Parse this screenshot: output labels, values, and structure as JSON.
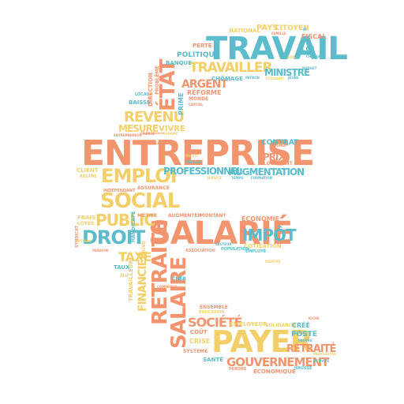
{
  "palette": {
    "salmon": "#f2956f",
    "teal": "#5bbccb",
    "yellow": "#f3cf6a",
    "background": "#ffffff"
  },
  "words": [
    {
      "text": "ENTREPRISE",
      "color": "salmon"
    },
    {
      "text": "TRAVAIL",
      "color": "teal"
    },
    {
      "text": "SALARIÉ",
      "color": "salmon"
    },
    {
      "text": "PAYER",
      "color": "yellow"
    },
    {
      "text": "SOCIAL",
      "color": "yellow"
    },
    {
      "text": "EMPLOI",
      "color": "yellow"
    },
    {
      "text": "DROIT",
      "color": "teal"
    },
    {
      "text": "RETRAITE",
      "color": "salmon"
    },
    {
      "text": "SALAIRE",
      "color": "salmon"
    },
    {
      "text": "GOUVERNEMENT",
      "color": "salmon"
    },
    {
      "text": "TRAVAILLER",
      "color": "yellow"
    },
    {
      "text": "ÉTAT",
      "color": "salmon"
    },
    {
      "text": "REVENU",
      "color": "yellow"
    },
    {
      "text": "PUBLIC",
      "color": "yellow"
    },
    {
      "text": "IMPÔT",
      "color": "teal"
    },
    {
      "text": "PROFESSIONNEL",
      "color": "teal"
    },
    {
      "text": "AUGMENTATION",
      "color": "teal"
    },
    {
      "text": "TAXE",
      "color": "yellow"
    },
    {
      "text": "SOCIÉTÉ",
      "color": "salmon"
    },
    {
      "text": "FINANCIER",
      "color": "yellow"
    },
    {
      "text": "RETRAITÉ",
      "color": "salmon"
    },
    {
      "text": "MESURE",
      "color": "yellow"
    },
    {
      "text": "ARGENT",
      "color": "salmon"
    },
    {
      "text": "MINISTRE",
      "color": "teal"
    },
    {
      "text": "PRIX",
      "color": "salmon"
    },
    {
      "text": "CONTRAT",
      "color": "teal"
    },
    {
      "text": "POLITIQUE",
      "color": "teal"
    },
    {
      "text": "PAYS",
      "color": "yellow"
    },
    {
      "text": "CITOYEN",
      "color": "yellow"
    },
    {
      "text": "NATIONAL",
      "color": "yellow"
    },
    {
      "text": "FISCAL",
      "color": "salmon"
    },
    {
      "text": "LOI",
      "color": "teal"
    },
    {
      "text": "PERTE",
      "color": "salmon"
    },
    {
      "text": "BANQUE",
      "color": "teal"
    },
    {
      "text": "CHÔMAGE",
      "color": "teal"
    },
    {
      "text": "RÉFORME",
      "color": "salmon"
    },
    {
      "text": "VIVRE",
      "color": "yellow"
    },
    {
      "text": "BAISSE",
      "color": "teal"
    },
    {
      "text": "DIRECTION",
      "color": "salmon"
    },
    {
      "text": "PROBLÈME",
      "color": "salmon"
    },
    {
      "text": "PRIME",
      "color": "teal"
    },
    {
      "text": "MONDE",
      "color": "salmon"
    },
    {
      "text": "LOCAL",
      "color": "teal"
    },
    {
      "text": "CLIENT",
      "color": "yellow"
    },
    {
      "text": "RÉGIME",
      "color": "yellow"
    },
    {
      "text": "INDÉPENDANT",
      "color": "salmon"
    },
    {
      "text": "ASSURANCE",
      "color": "salmon"
    },
    {
      "text": "MÉTIER",
      "color": "salmon"
    },
    {
      "text": "AUGMENTER",
      "color": "salmon"
    },
    {
      "text": "MONTANT",
      "color": "salmon"
    },
    {
      "text": "ÉCONOMIE",
      "color": "salmon"
    },
    {
      "text": "FRAIS",
      "color": "yellow"
    },
    {
      "text": "LOYER",
      "color": "yellow"
    },
    {
      "text": "COTISATION",
      "color": "yellow"
    },
    {
      "text": "POPULATION",
      "color": "teal"
    },
    {
      "text": "EMPLOYÉ",
      "color": "teal"
    },
    {
      "text": "LOGEMENT",
      "color": "salmon"
    },
    {
      "text": "TAUX",
      "color": "teal"
    },
    {
      "text": "ÉLU",
      "color": "yellow"
    },
    {
      "text": "PRIVÉ",
      "color": "yellow"
    },
    {
      "text": "CHER",
      "color": "teal"
    },
    {
      "text": "TRAVAILLEUR",
      "color": "yellow"
    },
    {
      "text": "HANDICAPÉ",
      "color": "teal"
    },
    {
      "text": "SYNDICAT",
      "color": "salmon"
    },
    {
      "text": "EMPLOYEUR",
      "color": "yellow"
    },
    {
      "text": "SOLIDARITÉ",
      "color": "yellow"
    },
    {
      "text": "CRÉÉ",
      "color": "teal"
    },
    {
      "text": "POSTE",
      "color": "teal"
    },
    {
      "text": "CRISE",
      "color": "yellow"
    },
    {
      "text": "COÛT",
      "color": "salmon"
    },
    {
      "text": "SYSTÈME",
      "color": "salmon"
    },
    {
      "text": "SANTÉ",
      "color": "teal"
    },
    {
      "text": "PERDRE",
      "color": "salmon"
    },
    {
      "text": "ÉCONOMIQUE",
      "color": "salmon"
    },
    {
      "text": "HAUSSE",
      "color": "teal"
    },
    {
      "text": "ENSEMBLE",
      "color": "salmon"
    },
    {
      "text": "ÉDUCATION",
      "color": "yellow"
    },
    {
      "text": "ASSOCIATION",
      "color": "salmon"
    },
    {
      "text": "PENSION",
      "color": "salmon"
    },
    {
      "text": "ENTREPRENEUR",
      "color": "salmon"
    },
    {
      "text": "DÉPENSE",
      "color": "salmon"
    },
    {
      "text": "FORMATION",
      "color": "teal"
    },
    {
      "text": "SERVICE",
      "color": "yellow"
    },
    {
      "text": "TEMPS",
      "color": "teal"
    },
    {
      "text": "AIDE",
      "color": "yellow"
    },
    {
      "text": "CHARGE",
      "color": "teal"
    },
    {
      "text": "FAMILLE",
      "color": "salmon"
    },
    {
      "text": "PATRON",
      "color": "teal"
    },
    {
      "text": "ÉTUDIANT",
      "color": "yellow"
    },
    {
      "text": "JEUNE",
      "color": "teal"
    },
    {
      "text": "CAPITAL",
      "color": "salmon"
    },
    {
      "text": "PROFIT",
      "color": "yellow"
    },
    {
      "text": "VALEUR",
      "color": "teal"
    },
    {
      "text": "FRANCE",
      "color": "salmon"
    },
    {
      "text": "EUROPE",
      "color": "yellow"
    },
    {
      "text": "LICENCIEMENT",
      "color": "salmon"
    },
    {
      "text": "SECTEUR",
      "color": "teal"
    },
    {
      "text": "MARCHÉ",
      "color": "yellow"
    },
    {
      "text": "RICHE",
      "color": "salmon"
    },
    {
      "text": "PAUVRE",
      "color": "teal"
    },
    {
      "text": "PROFESSION",
      "color": "yellow"
    },
    {
      "text": "ACTIVITÉ",
      "color": "teal"
    },
    {
      "text": "COMMERCE",
      "color": "salmon"
    },
    {
      "text": "ARTISAN",
      "color": "yellow"
    },
    {
      "text": "SOCIALE",
      "color": "salmon"
    },
    {
      "text": "BUDGET",
      "color": "teal"
    },
    {
      "text": "IR",
      "color": "teal"
    }
  ]
}
